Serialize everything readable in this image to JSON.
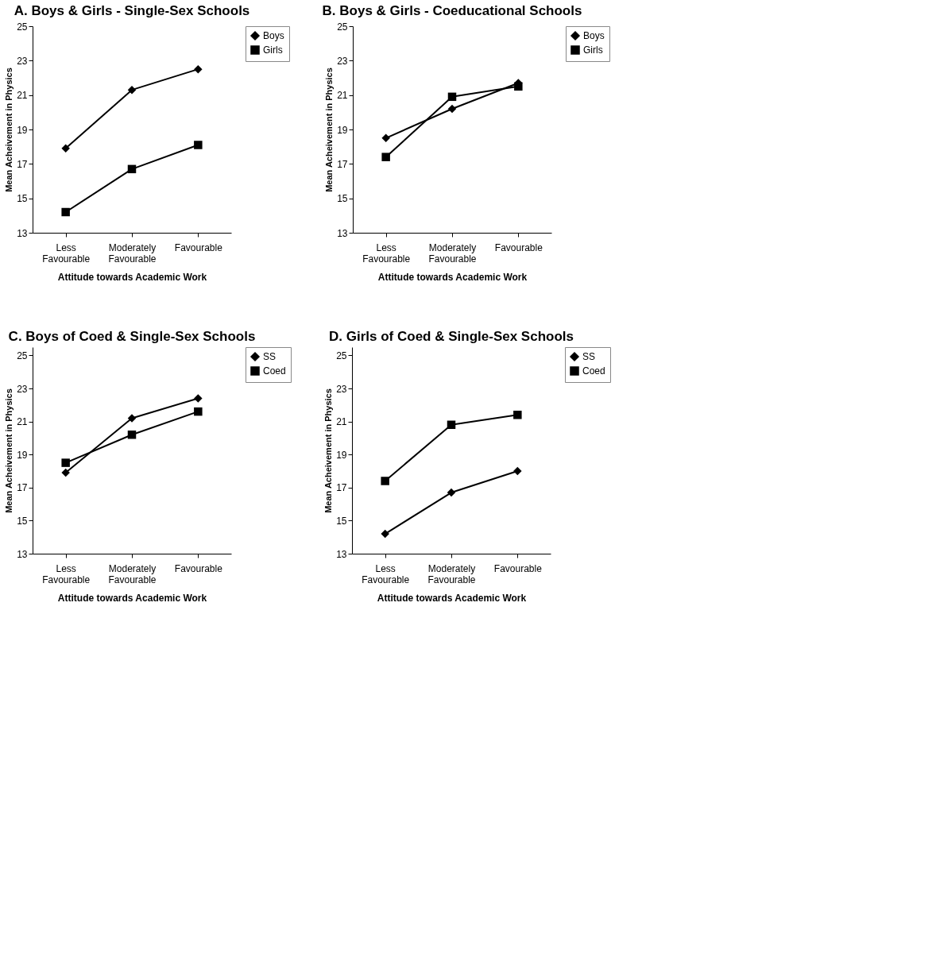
{
  "chart_data": [
    {
      "type": "line",
      "title": "A. Boys & Girls - Single-Sex Schools",
      "xlabel": "Attitude towards Academic Work",
      "ylabel": "Mean Acheivement in Physics",
      "categories": [
        "Less Favourable",
        "Moderately Favourable",
        "Favourable"
      ],
      "ylim": [
        13,
        25
      ],
      "yticks": [
        13,
        15,
        17,
        19,
        21,
        23,
        25
      ],
      "grid": false,
      "legend": "right",
      "series": [
        {
          "name": "Boys",
          "color": "#000000",
          "marker": "diamond",
          "values": [
            17.9,
            21.3,
            22.5
          ]
        },
        {
          "name": "Girls",
          "color": "#000000",
          "marker": "square",
          "values": [
            14.2,
            16.7,
            18.1
          ]
        }
      ]
    },
    {
      "type": "line",
      "title": "B. Boys & Girls - Coeducational Schools",
      "xlabel": "Attitude towards Academic Work",
      "ylabel": "Mean Acheivement in Physics",
      "categories": [
        "Less Favourable",
        "Moderately Favourable",
        "Favourable"
      ],
      "ylim": [
        13,
        25
      ],
      "yticks": [
        13,
        15,
        17,
        19,
        21,
        23,
        25
      ],
      "grid": false,
      "legend": "right",
      "series": [
        {
          "name": "Boys",
          "color": "#000000",
          "marker": "diamond",
          "values": [
            18.5,
            20.2,
            21.7
          ]
        },
        {
          "name": "Girls",
          "color": "#000000",
          "marker": "square",
          "values": [
            17.4,
            20.9,
            21.5
          ]
        }
      ]
    },
    {
      "type": "line",
      "title": "C. Boys of Coed & Single-Sex Schools",
      "xlabel": "Attitude towards Academic Work",
      "ylabel": "Mean Acheivement in Physics",
      "categories": [
        "Less Favourable",
        "Moderately Favourable",
        "Favourable"
      ],
      "ylim": [
        13,
        25.5
      ],
      "yticks": [
        13,
        15,
        17,
        19,
        21,
        23,
        25
      ],
      "grid": false,
      "legend": "right",
      "series": [
        {
          "name": "SS",
          "color": "#000000",
          "marker": "diamond",
          "values": [
            17.9,
            21.2,
            22.4
          ]
        },
        {
          "name": "Coed",
          "color": "#000000",
          "marker": "square",
          "values": [
            18.5,
            20.2,
            21.6
          ]
        }
      ]
    },
    {
      "type": "line",
      "title": "D. Girls of Coed & Single-Sex Schools",
      "xlabel": "Attitude towards Academic Work",
      "ylabel": "Mean Acheivement in Physics",
      "categories": [
        "Less Favourable",
        "Moderately Favourable",
        "Favourable"
      ],
      "ylim": [
        13,
        25.5
      ],
      "yticks": [
        13,
        15,
        17,
        19,
        21,
        23,
        25
      ],
      "grid": false,
      "legend": "right",
      "series": [
        {
          "name": "SS",
          "color": "#000000",
          "marker": "diamond",
          "values": [
            14.2,
            16.7,
            18.0
          ]
        },
        {
          "name": "Coed",
          "color": "#000000",
          "marker": "square",
          "values": [
            17.4,
            20.8,
            21.4
          ]
        }
      ]
    }
  ]
}
